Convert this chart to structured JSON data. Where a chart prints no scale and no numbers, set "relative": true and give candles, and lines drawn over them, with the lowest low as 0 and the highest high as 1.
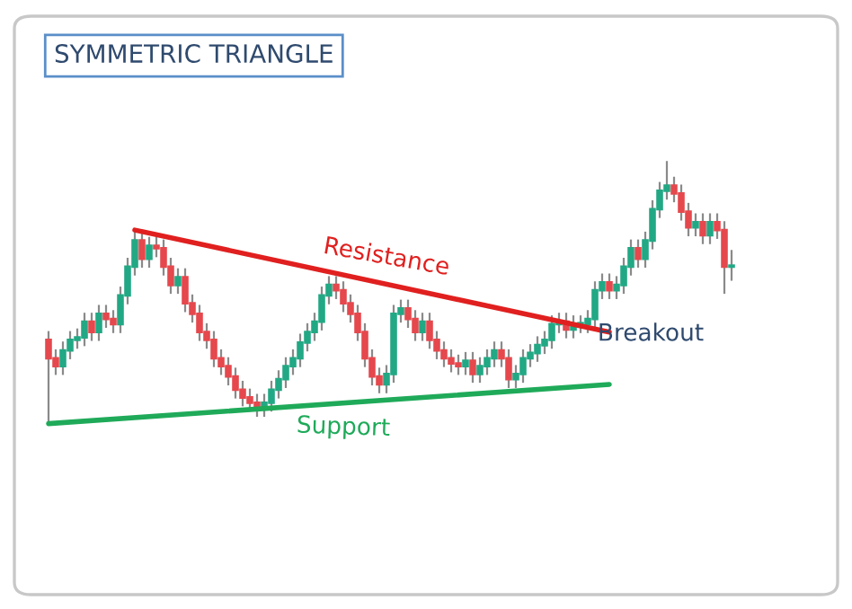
{
  "chart_data": {
    "type": "candlestick",
    "title": "SYMMETRIC TRIANGLE",
    "relative": true,
    "categories": [
      null,
      null,
      null,
      null,
      null,
      null,
      null,
      null,
      null,
      null,
      null,
      null,
      null,
      null,
      null,
      null,
      null,
      null,
      null,
      null,
      null,
      null,
      null,
      null,
      null,
      null,
      null,
      null,
      null,
      null,
      null,
      null,
      null,
      null,
      null,
      null,
      null,
      null,
      null,
      null,
      null,
      null,
      null,
      null,
      null,
      null,
      null,
      null,
      null,
      null,
      null,
      null,
      null,
      null,
      null,
      null,
      null,
      null,
      null,
      null,
      null,
      null,
      null,
      null,
      null,
      null,
      null,
      null,
      null,
      null,
      null,
      null,
      null,
      null,
      null,
      null,
      null,
      null,
      null,
      null,
      null,
      null,
      null,
      null,
      null,
      null,
      null,
      null,
      null,
      null,
      null,
      null,
      null,
      null,
      null,
      null
    ],
    "ohlc": [
      [
        0.32,
        0.35,
        0,
        0.25
      ],
      [
        0.25,
        0.28,
        0.19,
        0.22
      ],
      [
        0.22,
        0.31,
        0.19,
        0.28
      ],
      [
        0.28,
        0.35,
        0.25,
        0.32
      ],
      [
        0.32,
        0.36,
        0.29,
        0.33
      ],
      [
        0.33,
        0.42,
        0.3,
        0.39
      ],
      [
        0.39,
        0.42,
        0.32,
        0.35
      ],
      [
        0.35,
        0.45,
        0.32,
        0.42
      ],
      [
        0.42,
        0.45,
        0.37,
        0.4
      ],
      [
        0.4,
        0.43,
        0.35,
        0.38
      ],
      [
        0.38,
        0.52,
        0.35,
        0.49
      ],
      [
        0.49,
        0.63,
        0.46,
        0.6
      ],
      [
        0.6,
        0.73,
        0.57,
        0.7
      ],
      [
        0.7,
        0.73,
        0.6,
        0.63
      ],
      [
        0.63,
        0.71,
        0.6,
        0.68
      ],
      [
        0.68,
        0.71,
        0.64,
        0.67
      ],
      [
        0.67,
        0.7,
        0.57,
        0.6
      ],
      [
        0.6,
        0.63,
        0.5,
        0.53
      ],
      [
        0.53,
        0.59,
        0.5,
        0.56
      ],
      [
        0.56,
        0.59,
        0.43,
        0.46
      ],
      [
        0.46,
        0.49,
        0.39,
        0.42
      ],
      [
        0.42,
        0.45,
        0.32,
        0.35
      ],
      [
        0.35,
        0.38,
        0.29,
        0.32
      ],
      [
        0.32,
        0.35,
        0.22,
        0.25
      ],
      [
        0.25,
        0.28,
        0.19,
        0.22
      ],
      [
        0.22,
        0.25,
        0.15,
        0.18
      ],
      [
        0.18,
        0.21,
        0.1,
        0.13
      ],
      [
        0.13,
        0.16,
        0.07,
        0.1
      ],
      [
        0.1,
        0.13,
        0.05,
        0.08
      ],
      [
        0.08,
        0.11,
        0.03,
        0.06
      ],
      [
        0.06,
        0.11,
        0.03,
        0.08
      ],
      [
        0.08,
        0.16,
        0.05,
        0.13
      ],
      [
        0.13,
        0.2,
        0.1,
        0.17
      ],
      [
        0.17,
        0.25,
        0.14,
        0.22
      ],
      [
        0.22,
        0.28,
        0.19,
        0.25
      ],
      [
        0.25,
        0.34,
        0.22,
        0.31
      ],
      [
        0.31,
        0.38,
        0.28,
        0.35
      ],
      [
        0.35,
        0.42,
        0.32,
        0.39
      ],
      [
        0.39,
        0.52,
        0.36,
        0.49
      ],
      [
        0.49,
        0.56,
        0.46,
        0.53
      ],
      [
        0.53,
        0.56,
        0.48,
        0.51
      ],
      [
        0.51,
        0.54,
        0.43,
        0.46
      ],
      [
        0.46,
        0.49,
        0.39,
        0.42
      ],
      [
        0.42,
        0.45,
        0.32,
        0.35
      ],
      [
        0.35,
        0.38,
        0.22,
        0.25
      ],
      [
        0.25,
        0.28,
        0.15,
        0.18
      ],
      [
        0.18,
        0.21,
        0.12,
        0.15
      ],
      [
        0.15,
        0.22,
        0.12,
        0.19
      ],
      [
        0.19,
        0.45,
        0.16,
        0.42
      ],
      [
        0.42,
        0.47,
        0.39,
        0.44
      ],
      [
        0.44,
        0.47,
        0.37,
        0.4
      ],
      [
        0.4,
        0.43,
        0.32,
        0.35
      ],
      [
        0.35,
        0.42,
        0.32,
        0.39
      ],
      [
        0.39,
        0.42,
        0.29,
        0.32
      ],
      [
        0.32,
        0.35,
        0.25,
        0.28
      ],
      [
        0.28,
        0.31,
        0.22,
        0.25
      ],
      [
        0.25,
        0.28,
        0.2,
        0.23
      ],
      [
        0.23,
        0.26,
        0.19,
        0.22
      ],
      [
        0.22,
        0.27,
        0.19,
        0.24
      ],
      [
        0.24,
        0.27,
        0.16,
        0.19
      ],
      [
        0.19,
        0.25,
        0.16,
        0.22
      ],
      [
        0.22,
        0.28,
        0.19,
        0.25
      ],
      [
        0.25,
        0.31,
        0.22,
        0.28
      ],
      [
        0.28,
        0.31,
        0.22,
        0.25
      ],
      [
        0.25,
        0.28,
        0.14,
        0.17
      ],
      [
        0.17,
        0.22,
        0.14,
        0.19
      ],
      [
        0.19,
        0.28,
        0.16,
        0.25
      ],
      [
        0.25,
        0.3,
        0.22,
        0.27
      ],
      [
        0.27,
        0.33,
        0.24,
        0.3
      ],
      [
        0.3,
        0.35,
        0.27,
        0.32
      ],
      [
        0.32,
        0.41,
        0.29,
        0.38
      ],
      [
        0.38,
        0.42,
        0.35,
        0.39
      ],
      [
        0.39,
        0.42,
        0.33,
        0.36
      ],
      [
        0.36,
        0.41,
        0.33,
        0.38
      ],
      [
        0.38,
        0.41,
        0.35,
        0.38
      ],
      [
        0.38,
        0.43,
        0.35,
        0.4
      ],
      [
        0.4,
        0.54,
        0.37,
        0.51
      ],
      [
        0.51,
        0.57,
        0.48,
        0.54
      ],
      [
        0.54,
        0.57,
        0.48,
        0.51
      ],
      [
        0.51,
        0.56,
        0.48,
        0.53
      ],
      [
        0.53,
        0.63,
        0.5,
        0.6
      ],
      [
        0.6,
        0.7,
        0.57,
        0.67
      ],
      [
        0.67,
        0.7,
        0.6,
        0.63
      ],
      [
        0.63,
        0.73,
        0.6,
        0.7
      ],
      [
        0.7,
        0.85,
        0.67,
        0.82
      ],
      [
        0.82,
        0.92,
        0.79,
        0.89
      ],
      [
        0.89,
        1.0,
        0.86,
        0.91
      ],
      [
        0.91,
        0.94,
        0.85,
        0.88
      ],
      [
        0.88,
        0.91,
        0.78,
        0.81
      ],
      [
        0.81,
        0.84,
        0.72,
        0.75
      ],
      [
        0.75,
        0.8,
        0.72,
        0.77
      ],
      [
        0.77,
        0.8,
        0.69,
        0.72
      ],
      [
        0.72,
        0.8,
        0.69,
        0.77
      ],
      [
        0.77,
        0.8,
        0.71,
        0.74
      ],
      [
        0.74,
        0.77,
        0.5,
        0.6
      ],
      [
        0.6,
        0.66,
        0.55,
        0.6
      ]
    ],
    "series": [
      {
        "name": "Resistance",
        "type": "line",
        "color": "#e0201f",
        "values": [
          null,
          null,
          null,
          null,
          null,
          null,
          null,
          null,
          null,
          null,
          null,
          null,
          0.74,
          null,
          null,
          null,
          null,
          null,
          null,
          null,
          null,
          null,
          null,
          null,
          null,
          null,
          null,
          null,
          null,
          null,
          null,
          null,
          null,
          null,
          null,
          null,
          null,
          null,
          null,
          null,
          null,
          null,
          null,
          null,
          null,
          null,
          null,
          null,
          null,
          null,
          null,
          null,
          null,
          null,
          null,
          null,
          null,
          null,
          null,
          null,
          null,
          null,
          null,
          null,
          null,
          null,
          null,
          null,
          null,
          null,
          null,
          null,
          null,
          null,
          null,
          null,
          null,
          null,
          0.35,
          null,
          null,
          null,
          null,
          null,
          null,
          null,
          null,
          null,
          null,
          null,
          null,
          null,
          null,
          null,
          null,
          null
        ]
      },
      {
        "name": "Support",
        "type": "line",
        "color": "#1faa59",
        "values": [
          0,
          null,
          null,
          null,
          null,
          null,
          null,
          null,
          null,
          null,
          null,
          null,
          null,
          null,
          null,
          null,
          null,
          null,
          null,
          null,
          null,
          null,
          null,
          null,
          null,
          null,
          null,
          null,
          null,
          null,
          null,
          null,
          null,
          null,
          null,
          null,
          null,
          null,
          null,
          null,
          null,
          null,
          null,
          null,
          null,
          null,
          null,
          null,
          null,
          null,
          null,
          null,
          null,
          null,
          null,
          null,
          null,
          null,
          null,
          null,
          null,
          null,
          null,
          null,
          null,
          null,
          null,
          null,
          null,
          null,
          null,
          null,
          null,
          null,
          null,
          null,
          null,
          null,
          0.15,
          null,
          null,
          null,
          null,
          null,
          null,
          null,
          null,
          null,
          null,
          null,
          null,
          null,
          null,
          null,
          null,
          null
        ]
      }
    ],
    "annotations": [
      "Breakout"
    ]
  }
}
